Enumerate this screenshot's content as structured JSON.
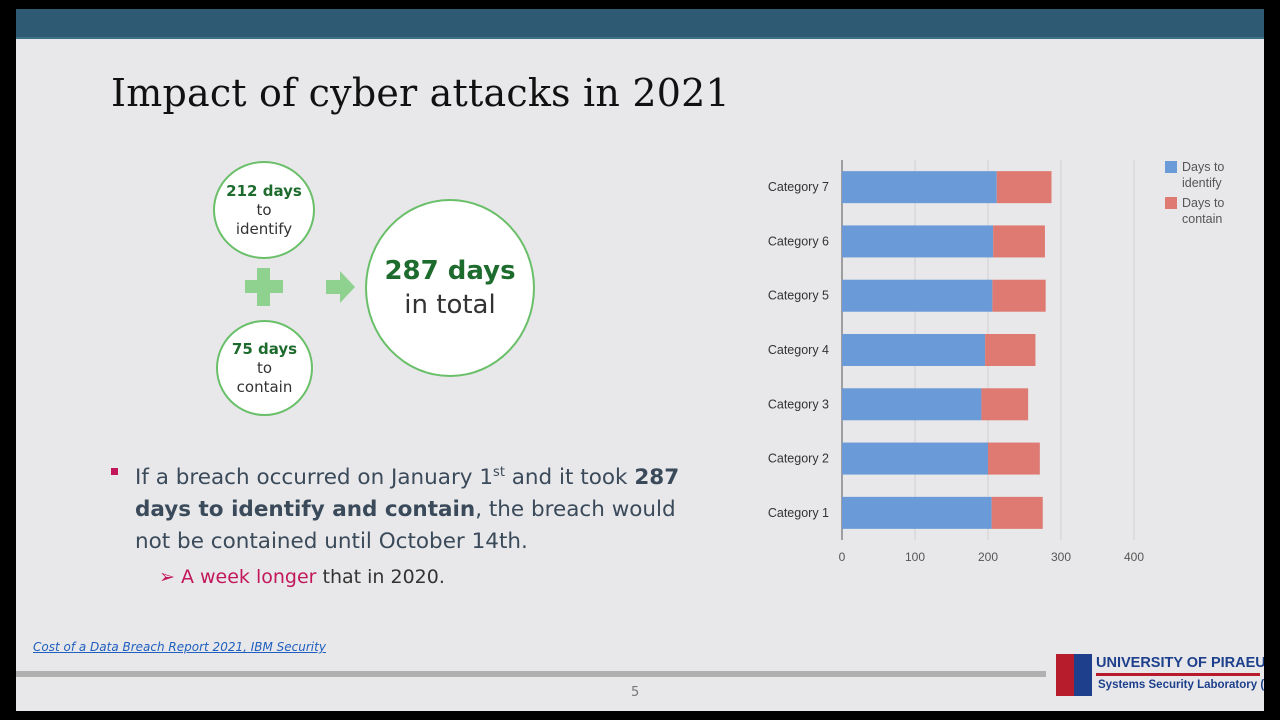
{
  "slide": {
    "title": "Impact of cyber attacks in 2021",
    "page_number": "5",
    "source_link": "Cost of a Data Breach Report 2021, IBM Security"
  },
  "infographic": {
    "identify_num": "212 days",
    "identify_word1": "to",
    "identify_word2": "identify",
    "contain_num": "75 days",
    "contain_word1": "to",
    "contain_word2": "contain",
    "total_num": "287 days",
    "total_text": "in total",
    "plus_icon": "plus-icon",
    "arrow_icon": "arrow-right-icon"
  },
  "bullet": {
    "part1": "If a breach occurred on January 1",
    "sup": "st",
    "part2": " and it took ",
    "bold": "287 days to identify and contain",
    "part3": ", the breach would not be contained until October 14th."
  },
  "sub_bullet": {
    "marker": "➢",
    "highlight": "A week longer",
    "rest": " that in 2020."
  },
  "logo": {
    "university": "UNIVERSITY OF PIRAEUS",
    "lab": "Systems Security Laboratory (SSL)"
  },
  "colors": {
    "topbar": "#2f5a73",
    "identify": "#6a9ad8",
    "contain": "#df7a72",
    "accent": "#c2185b",
    "green": "#1e6b2e"
  },
  "chart_data": {
    "type": "bar",
    "orientation": "horizontal",
    "stacked": true,
    "categories": [
      "Category 1",
      "Category 2",
      "Category 3",
      "Category 4",
      "Category 5",
      "Category 6",
      "Category 7"
    ],
    "series": [
      {
        "name": "Days to identify",
        "values": [
          205,
          200,
          191,
          196,
          206,
          207,
          212
        ],
        "color": "#6a9ad8"
      },
      {
        "name": "Days to contain",
        "values": [
          70,
          71,
          64,
          69,
          73,
          71,
          75
        ],
        "color": "#df7a72"
      }
    ],
    "xlim": [
      0,
      400
    ],
    "xticks": [
      "0",
      "100",
      "200",
      "300",
      "400"
    ],
    "grid": true,
    "legend": "right",
    "title": "",
    "xlabel": "",
    "ylabel": ""
  }
}
